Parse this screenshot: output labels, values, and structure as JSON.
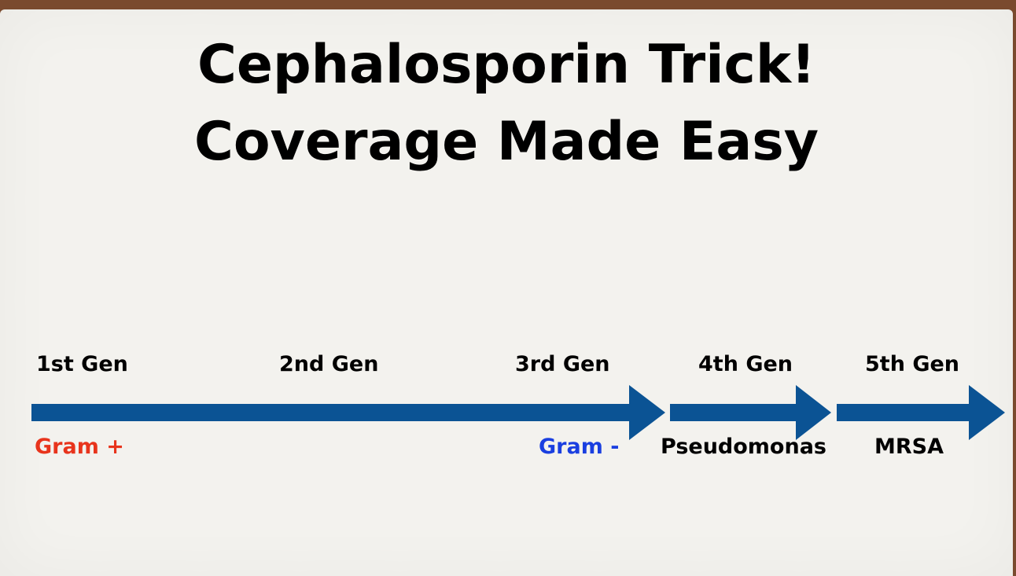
{
  "title_lines": [
    "Cephalosporin Trick!",
    "Coverage Made Easy"
  ],
  "generations": [
    "1st Gen",
    "2nd Gen",
    "3rd Gen",
    "4th Gen",
    "5th Gen"
  ],
  "coverage": [
    "Gram +",
    "Gram -",
    "Pseudomonas",
    "MRSA"
  ],
  "colors": {
    "arrow": "#0b5394",
    "gram_positive": "#e8341c",
    "gram_negative": "#1a3fe0",
    "frame": "#7a4a2e",
    "background": "#f3f2ee"
  }
}
